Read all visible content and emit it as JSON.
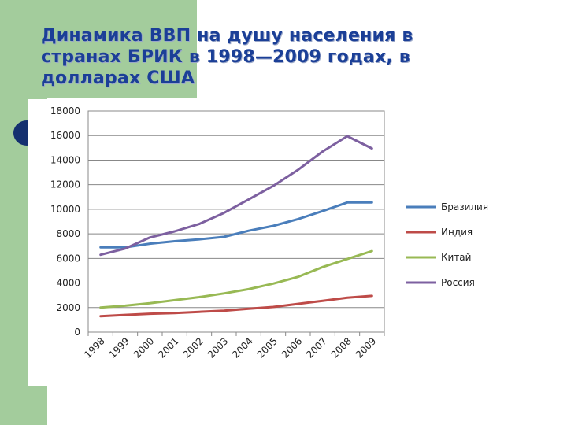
{
  "slide": {
    "title": "Динамика ВВП на душу населения в странах БРИК в 1998—2009 годах, в долларах США"
  },
  "colors": {
    "background_green": "#a3cc9c",
    "title": "#1b3f97",
    "bullet": "#14306f"
  },
  "chart_data": {
    "type": "line",
    "title": "",
    "xlabel": "",
    "ylabel": "",
    "x": [
      "1998",
      "1999",
      "2000",
      "2001",
      "2002",
      "2003",
      "2004",
      "2005",
      "2006",
      "2007",
      "2008",
      "2009"
    ],
    "ylim": [
      0,
      18000
    ],
    "yticks": [
      0,
      2000,
      4000,
      6000,
      8000,
      10000,
      12000,
      14000,
      16000,
      18000
    ],
    "ytick_labels": [
      "0",
      "2000",
      "4000",
      "6000",
      "8000",
      "10000",
      "12000",
      "14000",
      "16000",
      "18000"
    ],
    "grid": true,
    "legend_position": "right",
    "series": [
      {
        "name": "Бразилия",
        "color": "#4a7ebb",
        "values": [
          6900,
          6900,
          7200,
          7400,
          7550,
          7750,
          8250,
          8650,
          9200,
          9850,
          10550,
          10550
        ]
      },
      {
        "name": "Индия",
        "color": "#be4b48",
        "values": [
          1300,
          1400,
          1500,
          1550,
          1650,
          1750,
          1900,
          2050,
          2300,
          2550,
          2800,
          2950
        ]
      },
      {
        "name": "Китай",
        "color": "#98b954",
        "values": [
          2000,
          2150,
          2350,
          2600,
          2850,
          3150,
          3500,
          3950,
          4500,
          5300,
          5950,
          6600
        ]
      },
      {
        "name": "Россия",
        "color": "#7d60a0",
        "values": [
          6300,
          6800,
          7700,
          8200,
          8800,
          9700,
          10800,
          11900,
          13200,
          14700,
          15950,
          14950
        ]
      }
    ]
  }
}
